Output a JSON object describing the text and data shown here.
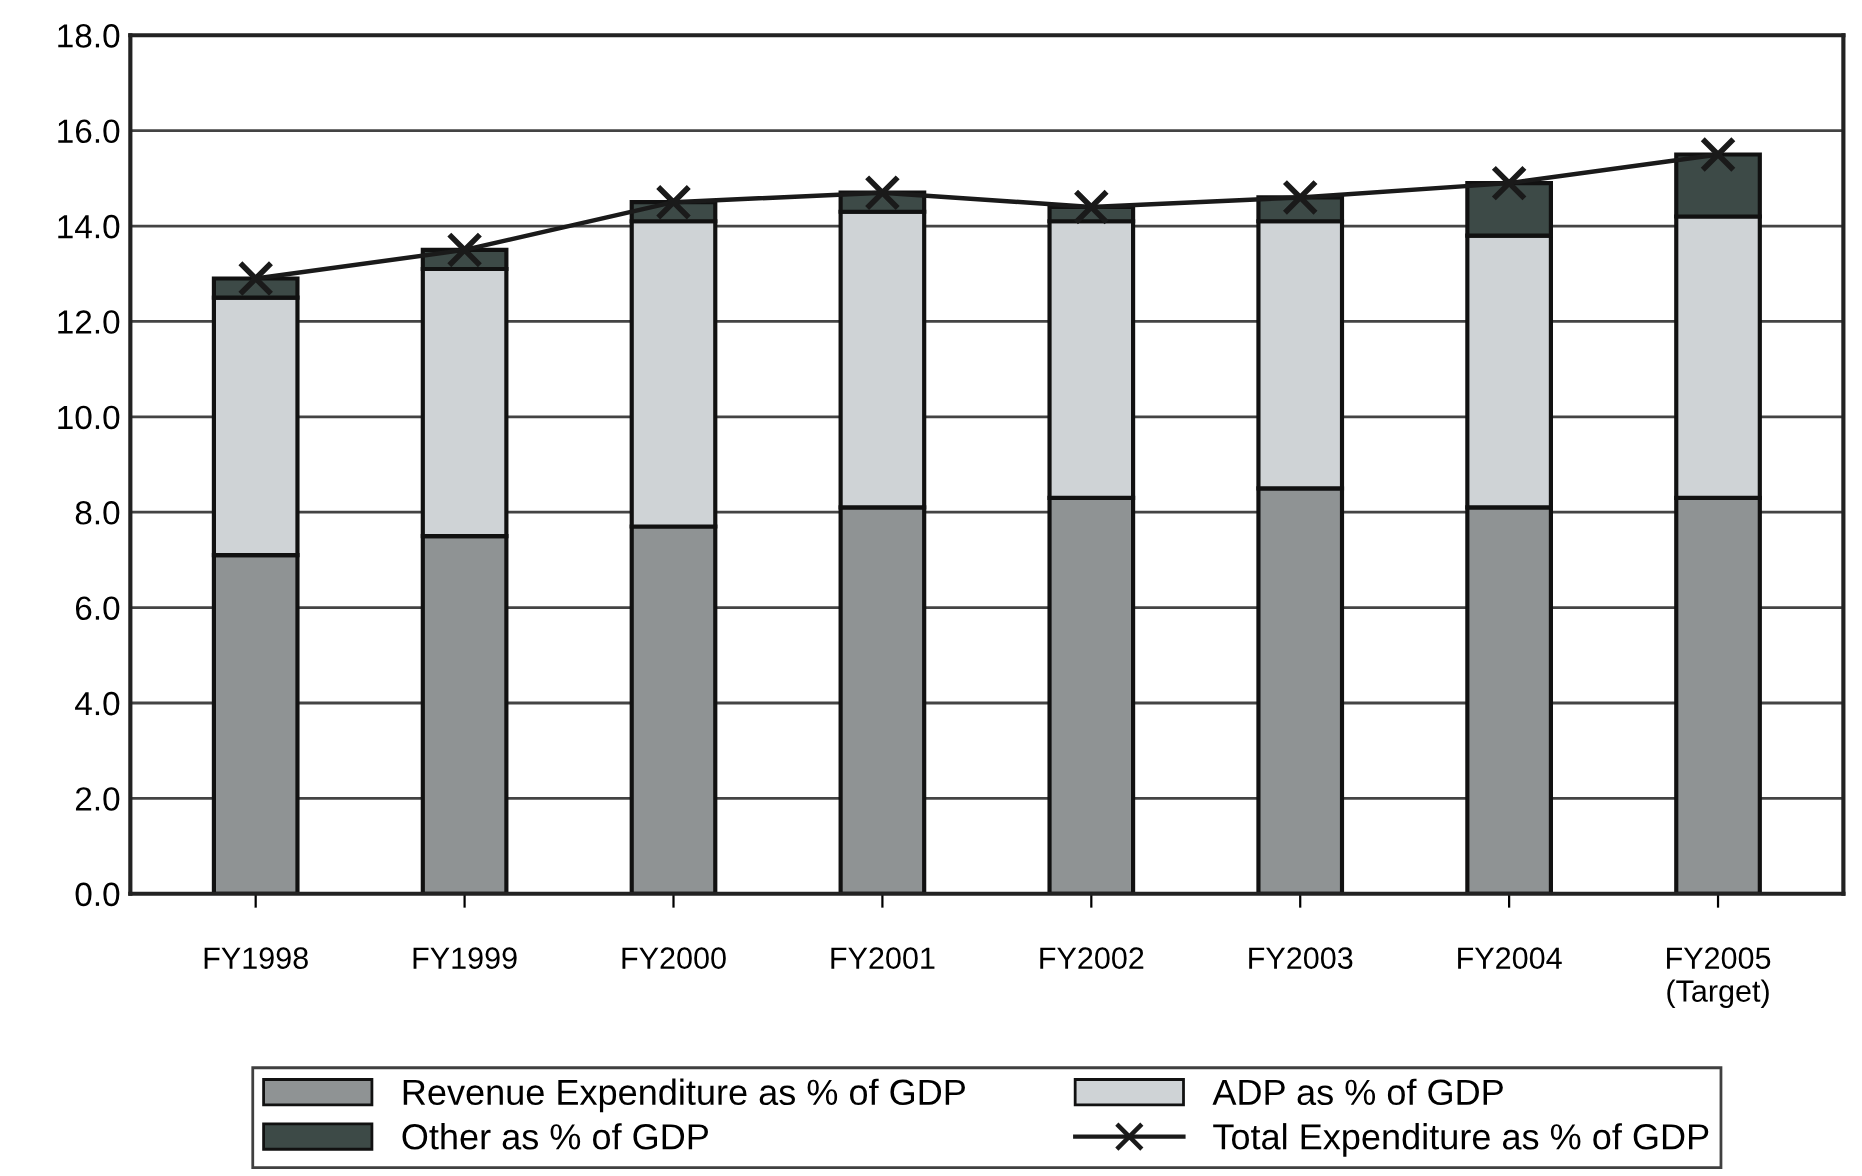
{
  "chart_data": {
    "type": "bar",
    "stacked": true,
    "categories": [
      "FY1998",
      "FY1999",
      "FY2000",
      "FY2001",
      "FY2002",
      "FY2003",
      "FY2004",
      "FY2005\n(Target)"
    ],
    "series": [
      {
        "name": "Revenue Expenditure as % of GDP",
        "color": "#8f9394",
        "values": [
          7.1,
          7.5,
          7.7,
          8.1,
          8.3,
          8.5,
          8.1,
          8.3
        ]
      },
      {
        "name": "ADP as % of GDP",
        "color": "#cfd3d6",
        "values": [
          5.4,
          5.6,
          6.4,
          6.2,
          5.8,
          5.6,
          5.7,
          5.9
        ]
      },
      {
        "name": "Other as % of GDP",
        "color": "#3d4a47",
        "values": [
          0.4,
          0.4,
          0.4,
          0.4,
          0.3,
          0.5,
          1.1,
          1.3
        ]
      },
      {
        "name": "Total Expenditure as % of GDP",
        "type": "line",
        "color": "#1a1a1a",
        "marker": "cross",
        "values": [
          12.9,
          13.5,
          14.5,
          14.7,
          14.4,
          14.6,
          14.9,
          15.5
        ]
      }
    ],
    "ylim": [
      0,
      18
    ],
    "yticks": [
      {
        "value": 0,
        "label": "0.0"
      },
      {
        "value": 2,
        "label": "2.0"
      },
      {
        "value": 4,
        "label": "4.0"
      },
      {
        "value": 6,
        "label": "6.0"
      },
      {
        "value": 8,
        "label": "8.0"
      },
      {
        "value": 10,
        "label": "10.0"
      },
      {
        "value": 12,
        "label": "12.0"
      },
      {
        "value": 14,
        "label": "14.0"
      },
      {
        "value": 16,
        "label": "16.0"
      },
      {
        "value": 18,
        "label": "18.0"
      }
    ],
    "grid": "y",
    "legend": "bottom"
  }
}
